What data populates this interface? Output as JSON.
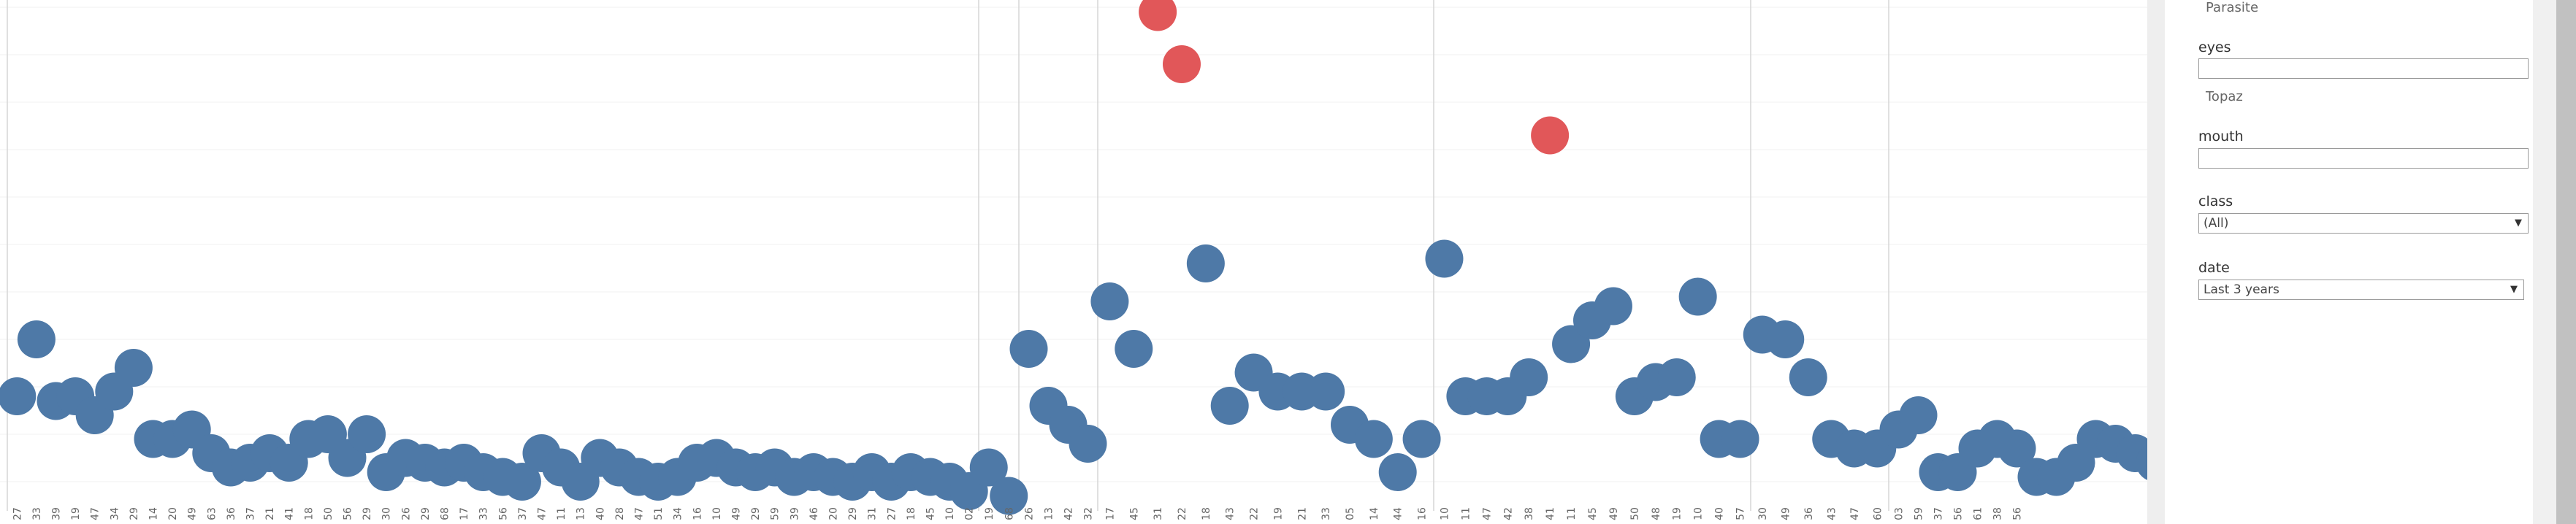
{
  "chart_data": {
    "type": "scatter",
    "title": "",
    "ylim": [
      0,
      10
    ],
    "grid": true,
    "colors": {
      "normal": "#4e79a7",
      "highlight": "#e15759"
    },
    "panels": [
      {
        "name": "p1",
        "points": [
          {
            "x": 0,
            "y": 1.8
          },
          {
            "x": 1,
            "y": 3.0
          },
          {
            "x": 2,
            "y": 1.7
          },
          {
            "x": 3,
            "y": 1.8
          },
          {
            "x": 4,
            "y": 1.4
          },
          {
            "x": 5,
            "y": 1.9
          },
          {
            "x": 6,
            "y": 2.4
          },
          {
            "x": 7,
            "y": 0.9
          },
          {
            "x": 8,
            "y": 0.9
          },
          {
            "x": 9,
            "y": 1.1
          },
          {
            "x": 10,
            "y": 0.6
          },
          {
            "x": 11,
            "y": 0.3
          },
          {
            "x": 12,
            "y": 0.4
          },
          {
            "x": 13,
            "y": 0.6
          },
          {
            "x": 14,
            "y": 0.4
          },
          {
            "x": 15,
            "y": 0.9
          },
          {
            "x": 16,
            "y": 1.0
          },
          {
            "x": 17,
            "y": 0.5
          },
          {
            "x": 18,
            "y": 1.0
          },
          {
            "x": 19,
            "y": 0.2
          },
          {
            "x": 20,
            "y": 0.5
          },
          {
            "x": 21,
            "y": 0.4
          },
          {
            "x": 22,
            "y": 0.3
          },
          {
            "x": 23,
            "y": 0.4
          },
          {
            "x": 24,
            "y": 0.2
          },
          {
            "x": 25,
            "y": 0.1
          },
          {
            "x": 26,
            "y": 0.0
          },
          {
            "x": 27,
            "y": 0.6
          },
          {
            "x": 28,
            "y": 0.3
          },
          {
            "x": 29,
            "y": 0.0
          },
          {
            "x": 30,
            "y": 0.5
          },
          {
            "x": 31,
            "y": 0.3
          },
          {
            "x": 32,
            "y": 0.1
          },
          {
            "x": 33,
            "y": 0.0
          },
          {
            "x": 34,
            "y": 0.1
          },
          {
            "x": 35,
            "y": 0.4
          },
          {
            "x": 36,
            "y": 0.5
          },
          {
            "x": 37,
            "y": 0.3
          },
          {
            "x": 38,
            "y": 0.2
          },
          {
            "x": 39,
            "y": 0.3
          },
          {
            "x": 40,
            "y": 0.1
          },
          {
            "x": 41,
            "y": 0.2
          },
          {
            "x": 42,
            "y": 0.1
          },
          {
            "x": 43,
            "y": 0.0
          },
          {
            "x": 44,
            "y": 0.2
          },
          {
            "x": 45,
            "y": 0.0
          },
          {
            "x": 46,
            "y": 0.2
          },
          {
            "x": 47,
            "y": 0.1
          },
          {
            "x": 48,
            "y": 0.0
          },
          {
            "x": 49,
            "y": -0.2
          }
        ]
      },
      {
        "name": "p2",
        "points": [
          {
            "x": 0,
            "y": 0.3
          },
          {
            "x": 1,
            "y": -0.3
          }
        ]
      },
      {
        "name": "p3",
        "points": [
          {
            "x": 0,
            "y": 2.8
          },
          {
            "x": 1,
            "y": 1.6
          },
          {
            "x": 2,
            "y": 1.2
          },
          {
            "x": 3,
            "y": 0.8
          }
        ]
      },
      {
        "name": "p4",
        "points": [
          {
            "x": 0,
            "y": 3.8
          },
          {
            "x": 1,
            "y": 2.8
          },
          {
            "x": 2,
            "y": 9.9,
            "highlight": true
          },
          {
            "x": 3,
            "y": 8.8,
            "highlight": true
          },
          {
            "x": 4,
            "y": 4.6
          },
          {
            "x": 5,
            "y": 1.6
          },
          {
            "x": 6,
            "y": 2.3
          },
          {
            "x": 7,
            "y": 1.9
          },
          {
            "x": 8,
            "y": 1.9
          },
          {
            "x": 9,
            "y": 1.9
          },
          {
            "x": 10,
            "y": 1.2
          },
          {
            "x": 11,
            "y": 0.9
          },
          {
            "x": 12,
            "y": 0.2
          },
          {
            "x": 13,
            "y": 0.9
          }
        ]
      },
      {
        "name": "p5",
        "points": [
          {
            "x": 0,
            "y": 4.7
          },
          {
            "x": 1,
            "y": 1.8
          },
          {
            "x": 2,
            "y": 1.8
          },
          {
            "x": 3,
            "y": 1.8
          },
          {
            "x": 4,
            "y": 2.2
          },
          {
            "x": 5,
            "y": 7.3,
            "highlight": true
          },
          {
            "x": 6,
            "y": 2.9
          },
          {
            "x": 7,
            "y": 3.4
          },
          {
            "x": 8,
            "y": 3.7
          },
          {
            "x": 9,
            "y": 1.8
          },
          {
            "x": 10,
            "y": 2.1
          },
          {
            "x": 11,
            "y": 2.2
          },
          {
            "x": 12,
            "y": 3.9
          },
          {
            "x": 13,
            "y": 0.9
          },
          {
            "x": 14,
            "y": 0.9
          }
        ]
      },
      {
        "name": "p6",
        "points": [
          {
            "x": 0,
            "y": 3.1
          },
          {
            "x": 1,
            "y": 3.0
          },
          {
            "x": 2,
            "y": 2.2
          },
          {
            "x": 3,
            "y": 0.9
          },
          {
            "x": 4,
            "y": 0.7
          },
          {
            "x": 5,
            "y": 0.7
          }
        ]
      },
      {
        "name": "p7",
        "points": [
          {
            "x": 0,
            "y": 1.1
          },
          {
            "x": 1,
            "y": 1.4
          },
          {
            "x": 2,
            "y": 0.2
          },
          {
            "x": 3,
            "y": 0.2
          },
          {
            "x": 4,
            "y": 0.7
          },
          {
            "x": 5,
            "y": 0.9
          },
          {
            "x": 6,
            "y": 0.7
          },
          {
            "x": 7,
            "y": 0.1
          },
          {
            "x": 8,
            "y": 0.1
          },
          {
            "x": 9,
            "y": 0.4
          },
          {
            "x": 10,
            "y": 0.9
          },
          {
            "x": 11,
            "y": 0.8
          },
          {
            "x": 12,
            "y": 0.6
          },
          {
            "x": 13,
            "y": 0.4
          }
        ]
      }
    ],
    "x_tick_labels": [
      "27",
      "33",
      "39",
      "19",
      "47",
      "34",
      "29",
      "14",
      "20",
      "49",
      "63",
      "36",
      "37",
      "21",
      "41",
      "18",
      "50",
      "56",
      "29",
      "30",
      "26",
      "29",
      "68",
      "17",
      "33",
      "56",
      "37",
      "47",
      "11",
      "13",
      "40",
      "28",
      "47",
      "51",
      "34",
      "16",
      "10",
      "49",
      "29",
      "59",
      "39",
      "46",
      "20",
      "29",
      "31",
      "27",
      "18",
      "45",
      "10",
      "02",
      "19",
      "68",
      "26",
      "13",
      "42",
      "32",
      "17",
      "45",
      "31",
      "22",
      "18",
      "43",
      "22",
      "19",
      "21",
      "33",
      "05",
      "14",
      "44",
      "16",
      "10",
      "11",
      "47",
      "42",
      "38",
      "41",
      "11",
      "45",
      "49",
      "50",
      "48",
      "19",
      "10",
      "40",
      "57",
      "30",
      "49",
      "36",
      "43",
      "47",
      "60",
      "03",
      "59",
      "37",
      "56",
      "61",
      "38",
      "56"
    ]
  },
  "filters": {
    "first_value": "Parasite",
    "eyes": {
      "label": "eyes",
      "value": "Topaz"
    },
    "mouth": {
      "label": "mouth"
    },
    "class": {
      "label": "class",
      "selected": "(All)"
    },
    "date": {
      "label": "date",
      "selected": "Last 3 years"
    }
  },
  "icons": {
    "dropdown": "caret-down-icon"
  }
}
